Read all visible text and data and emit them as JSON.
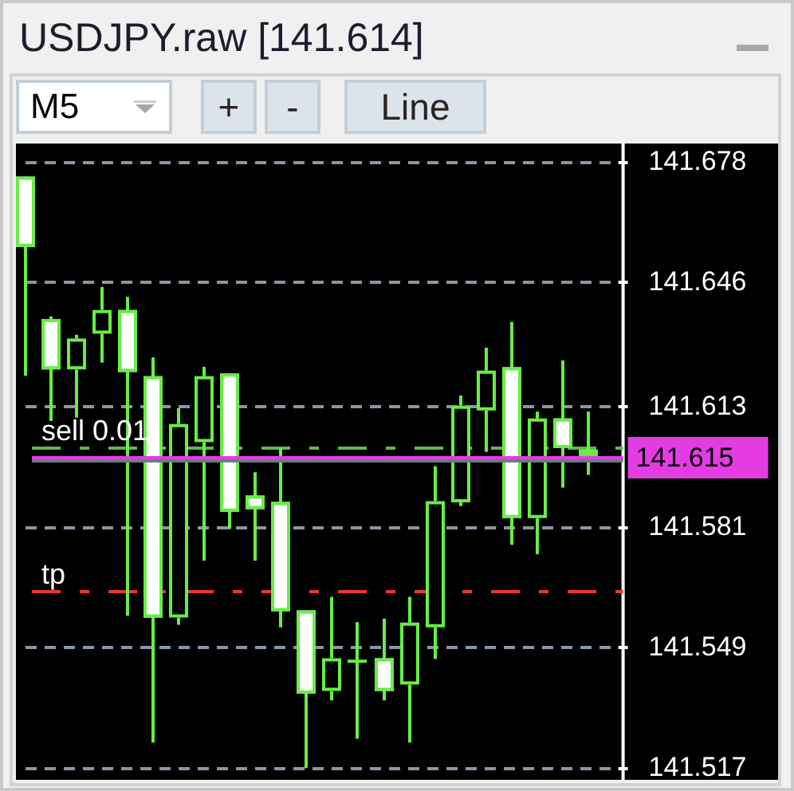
{
  "chart_data": {
    "type": "candlestick",
    "title": "USDJPY.raw [141.614]",
    "categories": [
      null,
      null,
      null,
      null,
      null,
      null,
      null,
      null,
      null,
      null,
      null,
      null,
      null,
      null,
      null,
      null,
      null,
      null,
      null,
      null,
      null,
      null,
      null
    ],
    "ohlc": [
      [
        141.6742,
        141.6742,
        141.6213,
        141.6555
      ],
      [
        141.6364,
        141.6371,
        141.6093,
        141.623
      ],
      [
        141.623,
        141.6322,
        141.6102,
        141.6312
      ],
      [
        141.6325,
        141.6449,
        141.6248,
        141.6388
      ],
      [
        141.6388,
        141.6423,
        141.5576,
        141.6223
      ],
      [
        141.6212,
        141.6262,
        141.5239,
        141.5571
      ],
      [
        141.5571,
        141.6127,
        141.5552,
        141.6085
      ],
      [
        141.6037,
        141.6237,
        141.5722,
        141.6212
      ],
      [
        141.6219,
        141.6219,
        141.5806,
        141.5852
      ],
      [
        141.5895,
        141.5957,
        141.5722,
        141.5859
      ],
      [
        141.5878,
        141.6021,
        141.5545,
        141.5588
      ],
      [
        141.559,
        141.559,
        141.5171,
        141.5369
      ],
      [
        141.5376,
        141.5626,
        141.5351,
        141.5463
      ],
      [
        141.5455,
        141.5559,
        141.5249,
        141.5455
      ],
      [
        141.5463,
        141.5568,
        141.5351,
        141.5376
      ],
      [
        141.5393,
        141.5626,
        141.5239,
        141.5558
      ],
      [
        141.5545,
        141.5973,
        141.5461,
        141.588
      ],
      [
        141.5877,
        141.6161,
        141.5867,
        141.6134
      ],
      [
        141.6121,
        141.6288,
        141.6011,
        141.6227
      ],
      [
        141.6236,
        141.6356,
        141.5764,
        141.5835
      ],
      [
        141.5835,
        141.6118,
        141.5739,
        141.61
      ],
      [
        141.61,
        141.6254,
        141.5916,
        141.6021
      ],
      [
        141.6017,
        141.6118,
        141.595,
        141.6
      ]
    ],
    "color": "#66ee44",
    "colors": [
      "#ffffff",
      "#ffffff",
      "#000000",
      "#000000",
      "#ffffff",
      "#ffffff",
      "#000000",
      "#000000",
      "#ffffff",
      "#ffffff",
      "#ffffff",
      "#ffffff",
      "#000000",
      "#66ee44",
      "#ffffff",
      "#000000",
      "#000000",
      "#000000",
      "#000000",
      "#ffffff",
      "#000000",
      "#ffffff",
      "#ffffff"
    ],
    "ylim": [
      141.514,
      141.683
    ],
    "yticks": [
      141.678,
      141.646,
      141.613,
      141.581,
      141.549,
      141.517
    ],
    "grid": "y",
    "tick_labels": "y",
    "ref_lines": [
      {
        "axis": "y",
        "value": 141.6022,
        "label": "sell 0.01",
        "color": "#5cb84a",
        "line_style": "dashed"
      },
      {
        "axis": "y",
        "value": 141.5641,
        "label": "tp",
        "color": "#e8392a",
        "line_style": "dashed"
      },
      {
        "axis": "y",
        "value": 141.5988,
        "color": "#6e7a86"
      },
      {
        "axis": "y",
        "value": 141.5997,
        "color": "#e23ce2"
      }
    ],
    "annotations": [
      "M5",
      "+",
      "-",
      "Line",
      "141.615"
    ]
  }
}
